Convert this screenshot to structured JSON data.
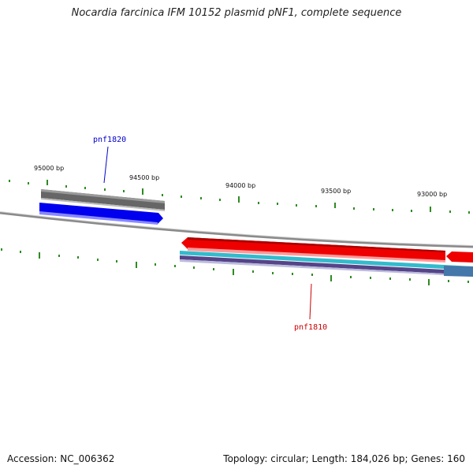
{
  "title": "Nocardia farcinica IFM 10152 plasmid pNF1, complete sequence",
  "footer": {
    "accession": "Accession: NC_006362",
    "summary": "Topology: circular; Length: 184,026 bp; Genes: 160"
  },
  "ticks": {
    "labels": [
      "95000 bp",
      "94500 bp",
      "94000 bp",
      "93500 bp",
      "93000 bp"
    ],
    "color": "#2e8b22"
  },
  "genes": [
    {
      "name": "pnf1820",
      "color": "#0000cc"
    },
    {
      "name": "pnf1810",
      "color": "#cc0000"
    }
  ],
  "colors": {
    "backbone": "#888888",
    "red_feature": "#ee0000",
    "blue_feature": "#0000ee",
    "gray_feature": "#666666",
    "cyan_feature": "#33bbcc",
    "purple_feature": "#554488",
    "steelblue_feature": "#4477aa"
  }
}
